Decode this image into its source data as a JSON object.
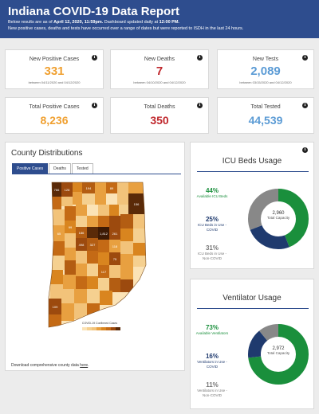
{
  "header": {
    "title": "Indiana COVID-19 Data Report",
    "line1_prefix": "Below results are as of ",
    "line1_date": "April 12, 2020, 11:59pm.",
    "line1_mid": " Dashboard updated daily at ",
    "line1_time": "12:00 PM.",
    "line2": "New positive cases, deaths and tests have occurred over a range of dates but were reported to ISDH in the last 24 hours."
  },
  "stats_new": [
    {
      "label": "New Positive Cases",
      "value": "331",
      "sub": "between 04/11/2020 and 04/12/2020",
      "color": "#f0a030"
    },
    {
      "label": "New Deaths",
      "value": "7",
      "sub": "between 04/10/2020 and 04/12/2020",
      "color": "#c0282d"
    },
    {
      "label": "New Tests",
      "value": "2,089",
      "sub": "between 03/15/2020 and 04/12/2020",
      "color": "#5b9bd5"
    }
  ],
  "stats_total": [
    {
      "label": "Total Positive Cases",
      "value": "8,236",
      "color": "#f0a030"
    },
    {
      "label": "Total Deaths",
      "value": "350",
      "color": "#c0282d"
    },
    {
      "label": "Total Tested",
      "value": "44,539",
      "color": "#5b9bd5"
    }
  ],
  "county": {
    "title": "County Distributions",
    "tabs": [
      "Positive Cases",
      "Deaths",
      "Tested"
    ],
    "legend_title": "COVID-19 Confirmed Cases",
    "download_prefix": "Download comprehensive county data ",
    "download_link": "here",
    "download_suffix": ".",
    "map_labels": [
      "766",
      "128",
      "194",
      "89",
      "156",
      "65",
      "99",
      "186",
      "261",
      "1,812",
      "118",
      "498",
      "327",
      "75",
      "117",
      "109"
    ]
  },
  "icu": {
    "title": "ICU Beds Usage",
    "center_value": "2,960",
    "center_label": "Total Capacity",
    "items": [
      {
        "pct": "44%",
        "label": "Available ICU Beds",
        "color": "#1a8f3c",
        "fraction": 0.44
      },
      {
        "pct": "25%",
        "label": "ICU Beds in Use - COVID",
        "color": "#1f3a6e",
        "fraction": 0.25
      },
      {
        "pct": "31%",
        "label": "ICU Beds in Use - Non-COVID",
        "color": "#888888",
        "fraction": 0.31
      }
    ]
  },
  "vent": {
    "title": "Ventilator Usage",
    "center_value": "2,972",
    "center_label": "Total Capacity",
    "items": [
      {
        "pct": "73%",
        "label": "Available Ventilators",
        "color": "#1a8f3c",
        "fraction": 0.73
      },
      {
        "pct": "16%",
        "label": "Ventilators in Use - COVID",
        "color": "#1f3a6e",
        "fraction": 0.16
      },
      {
        "pct": "11%",
        "label": "Ventilators in Use - Non-COVID",
        "color": "#888888",
        "fraction": 0.11
      }
    ]
  }
}
